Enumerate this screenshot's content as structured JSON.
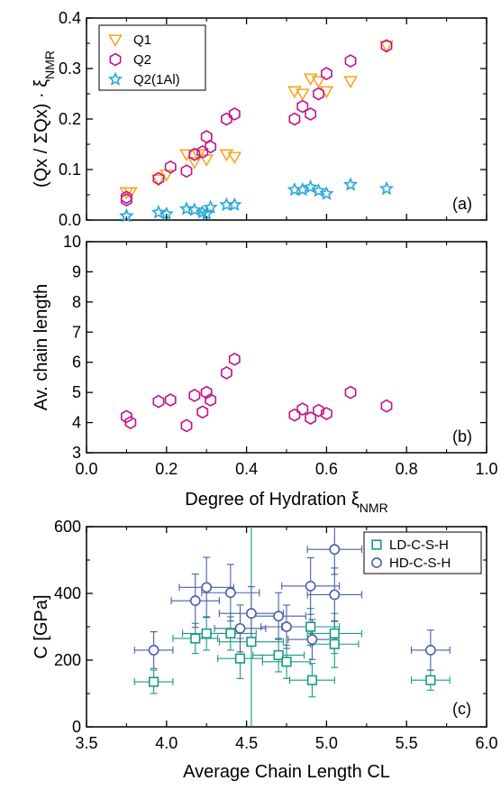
{
  "colors": {
    "q1": "#f5a623",
    "q2": "#c0138c",
    "q2_1al": "#2aa7d8",
    "ld": "#1a9a83",
    "hd": "#4a5fa8"
  },
  "chart_data": [
    {
      "id": "a",
      "type": "scatter",
      "panel_label": "(a)",
      "ylabel_text": "(Qx / ΣQx) · ξ",
      "ylabel_sub": "NMR",
      "xlim": [
        0.0,
        1.0
      ],
      "ylim": [
        0.0,
        0.4
      ],
      "yticks": [
        "0.0",
        "0.1",
        "0.2",
        "0.3",
        "0.4"
      ],
      "legend_position": "top-left",
      "series": [
        {
          "name": "Q1",
          "marker": "triangle-down",
          "points": [
            [
              0.1,
              0.055
            ],
            [
              0.11,
              0.055
            ],
            [
              0.18,
              0.08
            ],
            [
              0.2,
              0.09
            ],
            [
              0.25,
              0.13
            ],
            [
              0.27,
              0.115
            ],
            [
              0.28,
              0.13
            ],
            [
              0.3,
              0.12
            ],
            [
              0.35,
              0.13
            ],
            [
              0.37,
              0.125
            ],
            [
              0.52,
              0.255
            ],
            [
              0.54,
              0.25
            ],
            [
              0.56,
              0.28
            ],
            [
              0.58,
              0.275
            ],
            [
              0.6,
              0.255
            ],
            [
              0.66,
              0.275
            ],
            [
              0.75,
              0.345
            ]
          ]
        },
        {
          "name": "Q2",
          "marker": "hexagon",
          "points": [
            [
              0.1,
              0.045
            ],
            [
              0.1,
              0.04
            ],
            [
              0.18,
              0.082
            ],
            [
              0.21,
              0.105
            ],
            [
              0.25,
              0.097
            ],
            [
              0.27,
              0.13
            ],
            [
              0.29,
              0.135
            ],
            [
              0.3,
              0.165
            ],
            [
              0.31,
              0.145
            ],
            [
              0.35,
              0.2
            ],
            [
              0.37,
              0.21
            ],
            [
              0.52,
              0.2
            ],
            [
              0.54,
              0.225
            ],
            [
              0.56,
              0.21
            ],
            [
              0.58,
              0.25
            ],
            [
              0.6,
              0.29
            ],
            [
              0.66,
              0.315
            ],
            [
              0.75,
              0.345
            ]
          ]
        },
        {
          "name": "Q2(1Al)",
          "marker": "star",
          "points": [
            [
              0.1,
              0.008
            ],
            [
              0.1,
              0.008
            ],
            [
              0.18,
              0.015
            ],
            [
              0.2,
              0.012
            ],
            [
              0.25,
              0.022
            ],
            [
              0.27,
              0.02
            ],
            [
              0.29,
              0.015
            ],
            [
              0.3,
              0.012
            ],
            [
              0.31,
              0.025
            ],
            [
              0.35,
              0.03
            ],
            [
              0.37,
              0.03
            ],
            [
              0.52,
              0.06
            ],
            [
              0.54,
              0.06
            ],
            [
              0.56,
              0.065
            ],
            [
              0.58,
              0.058
            ],
            [
              0.6,
              0.052
            ],
            [
              0.66,
              0.07
            ],
            [
              0.75,
              0.062
            ]
          ]
        }
      ]
    },
    {
      "id": "b",
      "type": "scatter",
      "panel_label": "(b)",
      "ylabel": "Av. chain length",
      "xlabel_text": "Degree of Hydration ξ",
      "xlabel_sub": "NMR",
      "xlim": [
        0.0,
        1.0
      ],
      "ylim": [
        3,
        10
      ],
      "xticks": [
        "0.0",
        "0.2",
        "0.4",
        "0.6",
        "0.8",
        "1.0"
      ],
      "yticks": [
        "3",
        "4",
        "5",
        "6",
        "7",
        "8",
        "9",
        "10"
      ],
      "series": [
        {
          "marker": "hexagon",
          "points": [
            [
              0.1,
              4.2
            ],
            [
              0.11,
              4.0
            ],
            [
              0.18,
              4.7
            ],
            [
              0.21,
              4.75
            ],
            [
              0.25,
              3.9
            ],
            [
              0.27,
              4.9
            ],
            [
              0.29,
              4.35
            ],
            [
              0.3,
              5.0
            ],
            [
              0.31,
              4.75
            ],
            [
              0.35,
              5.65
            ],
            [
              0.37,
              6.1
            ],
            [
              0.52,
              4.25
            ],
            [
              0.54,
              4.45
            ],
            [
              0.56,
              4.15
            ],
            [
              0.58,
              4.4
            ],
            [
              0.6,
              4.3
            ],
            [
              0.66,
              5.0
            ],
            [
              0.75,
              4.55
            ]
          ]
        }
      ]
    },
    {
      "id": "c",
      "type": "scatter",
      "panel_label": "(c)",
      "ylabel": "C [GPa]",
      "xlabel": "Average Chain Length CL",
      "xlim": [
        3.5,
        6.0
      ],
      "ylim": [
        0,
        600
      ],
      "xticks": [
        "3.5",
        "4.0",
        "4.5",
        "5.0",
        "5.5",
        "6.0"
      ],
      "yticks": [
        "0",
        "200",
        "400",
        "600"
      ],
      "legend_position": "top-right",
      "series": [
        {
          "name": "LD-C-S-H",
          "marker": "square",
          "points": [
            {
              "x": 3.92,
              "y": 135,
              "xerr": 0.12,
              "yerr": 35
            },
            {
              "x": 4.18,
              "y": 265,
              "xerr": 0.14,
              "yerr": 45
            },
            {
              "x": 4.25,
              "y": 280,
              "xerr": 0.15,
              "yerr": 50
            },
            {
              "x": 4.4,
              "y": 280,
              "xerr": 0.16,
              "yerr": 50
            },
            {
              "x": 4.46,
              "y": 205,
              "xerr": 0.14,
              "yerr": 60
            },
            {
              "x": 4.53,
              "y": 255,
              "xerr": 0.2,
              "yerr": 420
            },
            {
              "x": 4.7,
              "y": 215,
              "xerr": 0.16,
              "yerr": 50
            },
            {
              "x": 4.75,
              "y": 195,
              "xerr": 0.15,
              "yerr": 50
            },
            {
              "x": 4.9,
              "y": 300,
              "xerr": 0.18,
              "yerr": 55
            },
            {
              "x": 4.91,
              "y": 140,
              "xerr": 0.14,
              "yerr": 50
            },
            {
              "x": 5.05,
              "y": 280,
              "xerr": 0.17,
              "yerr": 60
            },
            {
              "x": 5.05,
              "y": 248,
              "xerr": 0.15,
              "yerr": 70
            },
            {
              "x": 5.65,
              "y": 140,
              "xerr": 0.12,
              "yerr": 30
            }
          ]
        },
        {
          "name": "HD-C-S-H",
          "marker": "circle",
          "points": [
            {
              "x": 3.92,
              "y": 230,
              "xerr": 0.12,
              "yerr": 55
            },
            {
              "x": 4.18,
              "y": 378,
              "xerr": 0.15,
              "yerr": 80
            },
            {
              "x": 4.25,
              "y": 418,
              "xerr": 0.17,
              "yerr": 90
            },
            {
              "x": 4.4,
              "y": 402,
              "xerr": 0.18,
              "yerr": 85
            },
            {
              "x": 4.46,
              "y": 295,
              "xerr": 0.16,
              "yerr": 70
            },
            {
              "x": 4.53,
              "y": 340,
              "xerr": 0.2,
              "yerr": 80
            },
            {
              "x": 4.7,
              "y": 332,
              "xerr": 0.17,
              "yerr": 70
            },
            {
              "x": 4.75,
              "y": 300,
              "xerr": 0.16,
              "yerr": 65
            },
            {
              "x": 4.9,
              "y": 422,
              "xerr": 0.18,
              "yerr": 85
            },
            {
              "x": 4.91,
              "y": 262,
              "xerr": 0.15,
              "yerr": 60
            },
            {
              "x": 5.05,
              "y": 532,
              "xerr": 0.17,
              "yerr": 75
            },
            {
              "x": 5.05,
              "y": 396,
              "xerr": 0.17,
              "yerr": 80
            },
            {
              "x": 5.65,
              "y": 230,
              "xerr": 0.12,
              "yerr": 60
            }
          ]
        }
      ]
    }
  ]
}
